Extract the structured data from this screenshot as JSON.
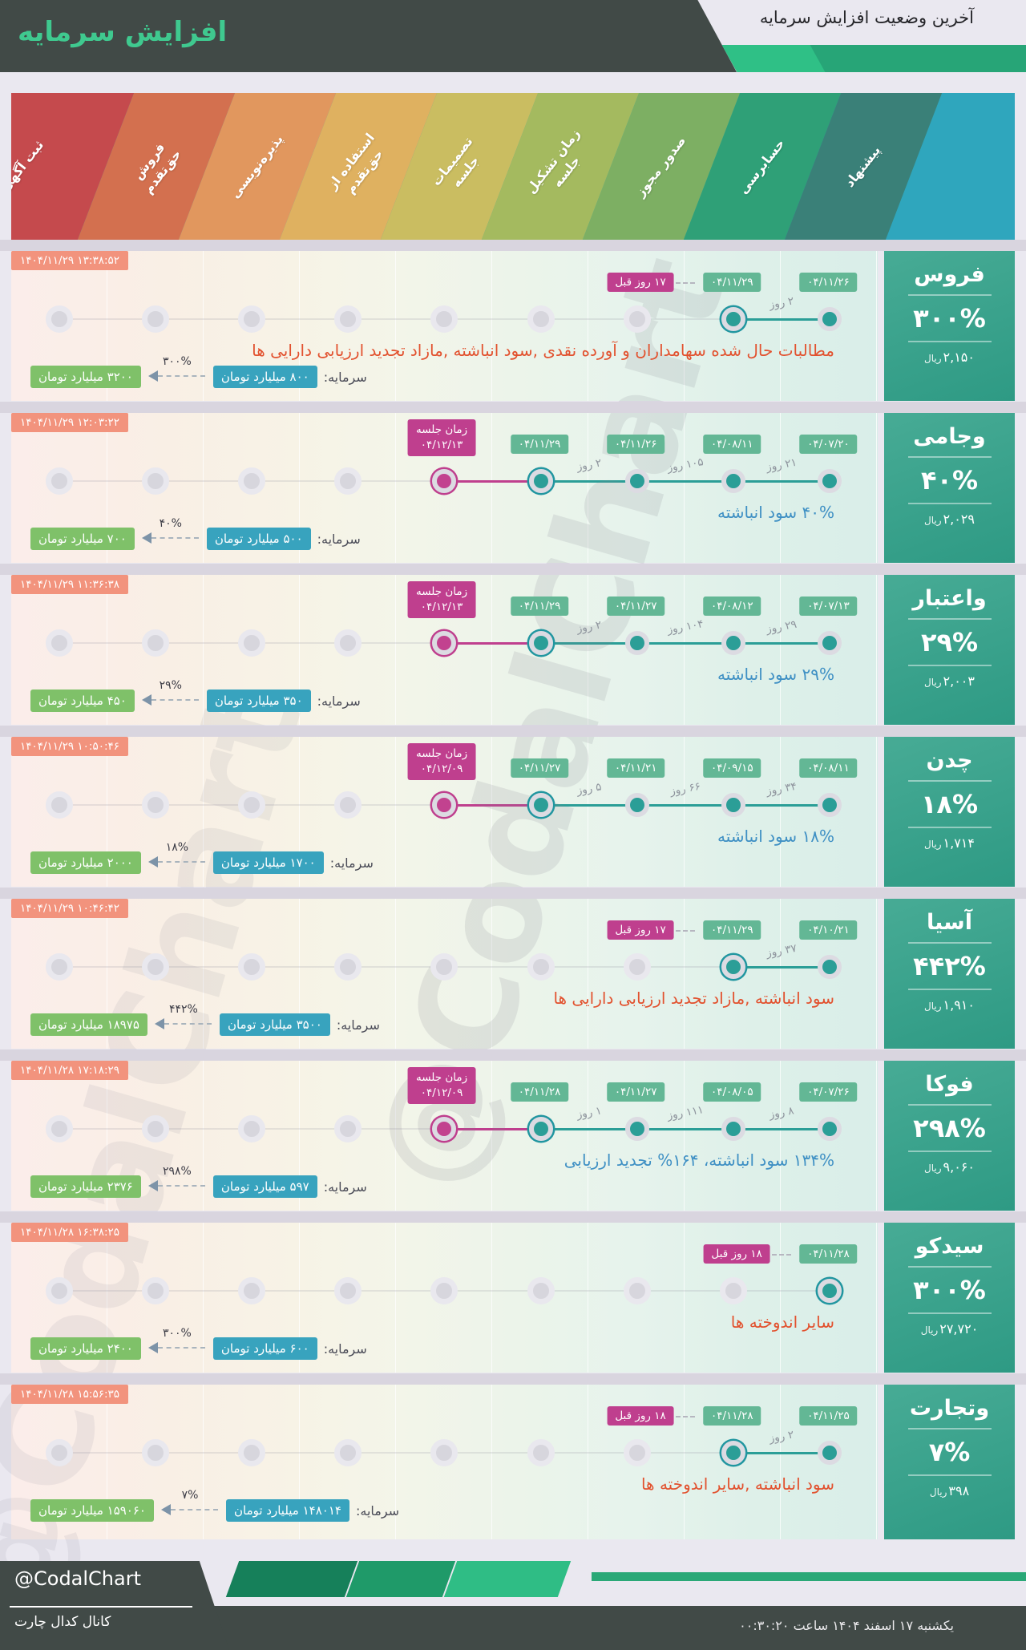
{
  "header": {
    "title": "افزایش سرمایه",
    "subtitle": "آخرین وضعیت افزایش سرمایه"
  },
  "stages": [
    {
      "label": "ثبت آگهی",
      "color": "#c54a4d"
    },
    {
      "label": "فروش حق‌تقدم",
      "color": "#d3704f"
    },
    {
      "label": "پذیره‌نویسی",
      "color": "#e1975e"
    },
    {
      "label": "استفاده از حق‌تقدم",
      "color": "#dfb160"
    },
    {
      "label": "تصمیمات جلسه",
      "color": "#cabd61"
    },
    {
      "label": "زمان تشکیل جلسه",
      "color": "#a4ba5f"
    },
    {
      "label": "صدور مجوز",
      "color": "#7daf63"
    },
    {
      "label": "حسابرسی",
      "color": "#2fa077"
    },
    {
      "label": "پیشنهاد",
      "color": "#3a8078"
    }
  ],
  "labels": {
    "capital": "سرمایه:",
    "rial": "ریال",
    "meeting": "زمان جلسه"
  },
  "watermark": "@CodalChart",
  "companies": [
    {
      "name": "فروس",
      "timestamp": "۱۴۰۴/۱۱/۲۹ ۱۳:۳۸:۵۲",
      "pct": "۳۰۰%",
      "price": "۲,۱۵۰",
      "desc": "مطالبات حال شده سهامداران و آورده نقدی ,سود انباشته ,مازاد تجدید ارزیابی دارایی ها",
      "desc_color": "red",
      "capital_from": "۸۰۰ میلیارد تومان",
      "capital_to": "۳۲۰۰ میلیارد تومان",
      "capital_pct": "۳۰۰%",
      "events": [
        {
          "col": 8,
          "date": "۰۴/۱۱/۲۹",
          "ring": true,
          "ago": "۱۷ روز قبل"
        },
        {
          "col": 9,
          "date": "۰۴/۱۱/۲۶"
        }
      ],
      "gaps": [
        {
          "col": 8,
          "label": "۲ روز"
        }
      ]
    },
    {
      "name": "وجامی",
      "timestamp": "۱۴۰۴/۱۱/۲۹ ۱۲:۰۳:۲۲",
      "pct": "۴۰%",
      "price": "۲,۰۲۹",
      "desc": "۴۰% سود انباشته",
      "desc_color": "blue",
      "capital_from": "۵۰۰ میلیارد تومان",
      "capital_to": "۷۰۰ میلیارد تومان",
      "capital_pct": "۴۰%",
      "events": [
        {
          "col": 5,
          "date": "۰۴/۱۲/۱۳",
          "meeting": true,
          "ring": true
        },
        {
          "col": 6,
          "date": "۰۴/۱۱/۲۹",
          "ring": true
        },
        {
          "col": 7,
          "date": "۰۴/۱۱/۲۶"
        },
        {
          "col": 8,
          "date": "۰۴/۰۸/۱۱"
        },
        {
          "col": 9,
          "date": "۰۴/۰۷/۲۰"
        }
      ],
      "gaps": [
        {
          "col": 6,
          "label": "۲ روز"
        },
        {
          "col": 7,
          "label": "۱۰۵ روز"
        },
        {
          "col": 8,
          "label": "۲۱ روز"
        }
      ]
    },
    {
      "name": "واعتبار",
      "timestamp": "۱۴۰۴/۱۱/۲۹ ۱۱:۳۶:۳۸",
      "pct": "۲۹%",
      "price": "۲,۰۰۳",
      "desc": "۲۹% سود انباشته",
      "desc_color": "blue",
      "capital_from": "۳۵۰ میلیارد تومان",
      "capital_to": "۴۵۰ میلیارد تومان",
      "capital_pct": "۲۹%",
      "events": [
        {
          "col": 5,
          "date": "۰۴/۱۲/۱۳",
          "meeting": true,
          "ring": true
        },
        {
          "col": 6,
          "date": "۰۴/۱۱/۲۹",
          "ring": true
        },
        {
          "col": 7,
          "date": "۰۴/۱۱/۲۷"
        },
        {
          "col": 8,
          "date": "۰۴/۰۸/۱۲"
        },
        {
          "col": 9,
          "date": "۰۴/۰۷/۱۳"
        }
      ],
      "gaps": [
        {
          "col": 6,
          "label": "۲ روز"
        },
        {
          "col": 7,
          "label": "۱۰۴ روز"
        },
        {
          "col": 8,
          "label": "۲۹ روز"
        }
      ]
    },
    {
      "name": "چدن",
      "timestamp": "۱۴۰۴/۱۱/۲۹ ۱۰:۵۰:۴۶",
      "pct": "۱۸%",
      "price": "۱,۷۱۴",
      "desc": "۱۸% سود انباشته",
      "desc_color": "blue",
      "capital_from": "۱۷۰۰ میلیارد تومان",
      "capital_to": "۲۰۰۰ میلیارد تومان",
      "capital_pct": "۱۸%",
      "events": [
        {
          "col": 5,
          "date": "۰۴/۱۲/۰۹",
          "meeting": true,
          "ring": true
        },
        {
          "col": 6,
          "date": "۰۴/۱۱/۲۷",
          "ring": true
        },
        {
          "col": 7,
          "date": "۰۴/۱۱/۲۱"
        },
        {
          "col": 8,
          "date": "۰۴/۰۹/۱۵"
        },
        {
          "col": 9,
          "date": "۰۴/۰۸/۱۱"
        }
      ],
      "gaps": [
        {
          "col": 6,
          "label": "۵ روز"
        },
        {
          "col": 7,
          "label": "۶۶ روز"
        },
        {
          "col": 8,
          "label": "۳۴ روز"
        }
      ]
    },
    {
      "name": "آسیا",
      "timestamp": "۱۴۰۴/۱۱/۲۹ ۱۰:۴۶:۴۲",
      "pct": "۴۴۲%",
      "price": "۱,۹۱۰",
      "desc": "سود انباشته ,مازاد تجدید ارزیابی دارایی ها",
      "desc_color": "red",
      "capital_from": "۳۵۰۰ میلیارد تومان",
      "capital_to": "۱۸۹۷۵ میلیارد تومان",
      "capital_pct": "۴۴۲%",
      "events": [
        {
          "col": 8,
          "date": "۰۴/۱۱/۲۹",
          "ring": true,
          "ago": "۱۷ روز قبل"
        },
        {
          "col": 9,
          "date": "۰۴/۱۰/۲۱"
        }
      ],
      "gaps": [
        {
          "col": 8,
          "label": "۳۷ روز"
        }
      ]
    },
    {
      "name": "فوکا",
      "timestamp": "۱۴۰۴/۱۱/۲۸ ۱۷:۱۸:۲۹",
      "pct": "۲۹۸%",
      "price": "۹,۰۶۰",
      "desc": "۱۳۴% سود انباشته، ۱۶۴% تجدید ارزیابی",
      "desc_color": "blue",
      "capital_from": "۵۹۷ میلیارد تومان",
      "capital_to": "۲۳۷۶ میلیارد تومان",
      "capital_pct": "۲۹۸%",
      "events": [
        {
          "col": 5,
          "date": "۰۴/۱۲/۰۹",
          "meeting": true,
          "ring": true
        },
        {
          "col": 6,
          "date": "۰۴/۱۱/۲۸",
          "ring": true
        },
        {
          "col": 7,
          "date": "۰۴/۱۱/۲۷"
        },
        {
          "col": 8,
          "date": "۰۴/۰۸/۰۵"
        },
        {
          "col": 9,
          "date": "۰۴/۰۷/۲۶"
        }
      ],
      "gaps": [
        {
          "col": 6,
          "label": "۱ روز"
        },
        {
          "col": 7,
          "label": "۱۱۱ روز"
        },
        {
          "col": 8,
          "label": "۸ روز"
        }
      ]
    },
    {
      "name": "سیدکو",
      "timestamp": "۱۴۰۴/۱۱/۲۸ ۱۶:۳۸:۲۵",
      "pct": "۳۰۰%",
      "price": "۲۷,۷۲۰",
      "desc": "سایر اندوخته ها",
      "desc_color": "red",
      "capital_from": "۶۰۰ میلیارد تومان",
      "capital_to": "۲۴۰۰ میلیارد تومان",
      "capital_pct": "۳۰۰%",
      "events": [
        {
          "col": 9,
          "date": "۰۴/۱۱/۲۸",
          "ring": true,
          "ago": "۱۸ روز قبل"
        }
      ],
      "gaps": []
    },
    {
      "name": "وتجارت",
      "timestamp": "۱۴۰۴/۱۱/۲۸ ۱۵:۵۶:۳۵",
      "pct": "۷%",
      "price": "۳۹۸",
      "desc": "سود انباشته ,سایر اندوخته ها",
      "desc_color": "red",
      "capital_from": "۱۴۸۰۱۴ میلیارد تومان",
      "capital_to": "۱۵۹۰۶۰ میلیارد تومان",
      "capital_pct": "۷%",
      "events": [
        {
          "col": 8,
          "date": "۰۴/۱۱/۲۸",
          "ring": true,
          "ago": "۱۸ روز قبل"
        },
        {
          "col": 9,
          "date": "۰۴/۱۱/۲۵"
        }
      ],
      "gaps": [
        {
          "col": 8,
          "label": "۲ روز"
        }
      ]
    }
  ],
  "footer": {
    "handle": "@CodalChart",
    "channel": "کانال کدال چارت",
    "date_prefix": "یکشنبه ۱۷ اسفند ۱۴۰۴ ساعت",
    "time": "۰۰:۳۰:۲۰"
  },
  "colors": {
    "header_dark": "#414a47",
    "title_green": "#3fc98f",
    "header_greens": [
      "#2fc086",
      "#27a577"
    ],
    "timestamp_badge": "#f2937d",
    "date_badge": "#63b795",
    "magenta": "#bf3f8e",
    "teal_dot": "#2b9e97",
    "capital_blue": "#38a3be",
    "capital_green": "#7fc169",
    "desc_red": "#e2512e",
    "desc_blue": "#3f90c4",
    "card_teal": "#3aa28c",
    "footer_dark": "#414a47",
    "footer_greens": [
      "#16805a",
      "#1f9a69",
      "#2fbd85"
    ],
    "footer_thin": "#2aa877"
  }
}
